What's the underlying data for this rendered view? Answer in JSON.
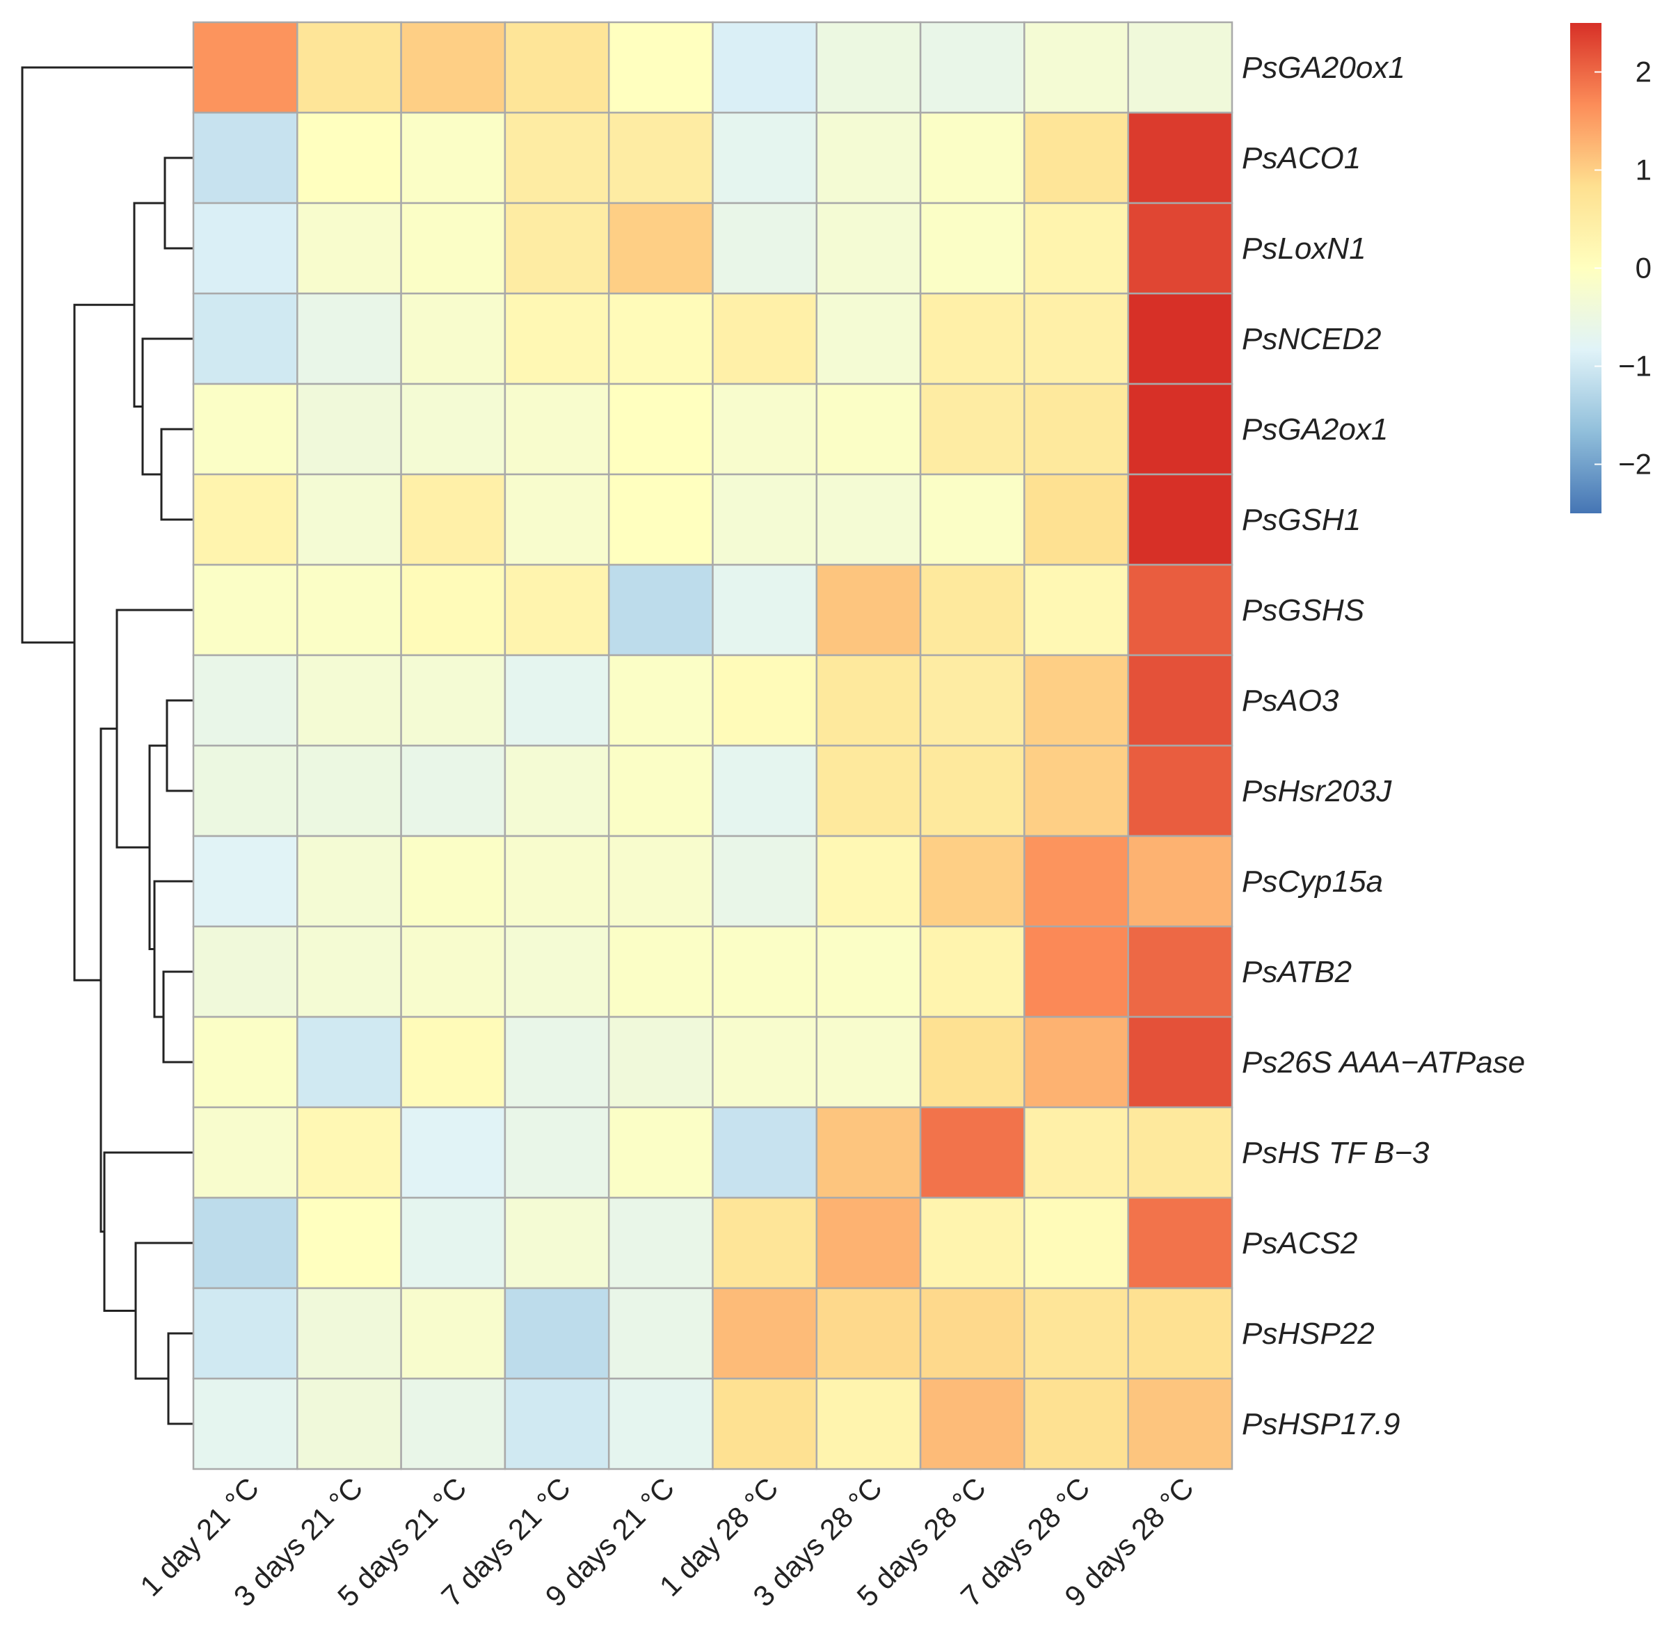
{
  "chart_data": {
    "type": "heatmap",
    "title": "",
    "columns": [
      "1 day 21 °C",
      "3 days 21 °C",
      "5 days 21 °C",
      "7 days 21 °C",
      "9 days 21 °C",
      "1 day 28 °C",
      "3 days 28 °C",
      "5 days 28 °C",
      "7 days 28 °C",
      "9 days 28 °C"
    ],
    "rows": [
      "PsGA20ox1",
      "PsACO1",
      "PsLoxN1",
      "PsNCED2",
      "PsGA2ox1",
      "PsGSH1",
      "PsGSHS",
      "PsAO3",
      "PsHsr203J",
      "PsCyp15a",
      "PsATB2",
      "Ps26S AAA−ATPase",
      "PsHS TF B−3",
      "PsACS2",
      "PsHSP22",
      "PsHSP17.9"
    ],
    "values": [
      [
        1.6,
        0.7,
        1.0,
        0.7,
        0.0,
        -0.9,
        -0.5,
        -0.6,
        -0.3,
        -0.4
      ],
      [
        -1.1,
        0.0,
        -0.1,
        0.5,
        0.5,
        -0.7,
        -0.3,
        -0.1,
        0.7,
        2.4
      ],
      [
        -0.9,
        -0.2,
        -0.1,
        0.5,
        1.0,
        -0.6,
        -0.3,
        -0.1,
        0.3,
        2.3
      ],
      [
        -1.0,
        -0.6,
        -0.2,
        0.2,
        0.1,
        0.4,
        -0.3,
        0.4,
        0.4,
        2.5
      ],
      [
        -0.1,
        -0.4,
        -0.3,
        -0.2,
        0.0,
        -0.2,
        -0.1,
        0.5,
        0.6,
        2.5
      ],
      [
        0.3,
        -0.3,
        0.4,
        -0.2,
        0.0,
        -0.3,
        -0.3,
        -0.1,
        0.8,
        2.5
      ],
      [
        -0.1,
        -0.1,
        0.1,
        0.3,
        -1.2,
        -0.7,
        1.1,
        0.6,
        0.2,
        2.1
      ],
      [
        -0.6,
        -0.3,
        -0.3,
        -0.7,
        -0.1,
        0.1,
        0.6,
        0.5,
        1.0,
        2.2
      ],
      [
        -0.5,
        -0.5,
        -0.6,
        -0.3,
        -0.1,
        -0.7,
        0.6,
        0.6,
        1.0,
        2.1
      ],
      [
        -0.8,
        -0.3,
        -0.1,
        -0.2,
        -0.2,
        -0.6,
        0.2,
        1.0,
        1.6,
        1.3
      ],
      [
        -0.4,
        -0.3,
        -0.2,
        -0.3,
        -0.1,
        -0.1,
        -0.1,
        0.3,
        1.7,
        2.0
      ],
      [
        -0.1,
        -1.0,
        0.1,
        -0.6,
        -0.4,
        -0.2,
        -0.2,
        0.8,
        1.3,
        2.2
      ],
      [
        -0.2,
        0.2,
        -0.8,
        -0.6,
        -0.1,
        -1.1,
        1.1,
        1.9,
        0.4,
        0.6
      ],
      [
        -1.2,
        0.0,
        -0.7,
        -0.3,
        -0.6,
        0.7,
        1.3,
        0.3,
        0.1,
        1.9
      ],
      [
        -1.0,
        -0.4,
        -0.2,
        -1.2,
        -0.6,
        1.2,
        0.9,
        0.9,
        0.7,
        0.8
      ],
      [
        -0.7,
        -0.4,
        -0.6,
        -1.0,
        -0.7,
        0.8,
        0.3,
        1.2,
        0.8,
        1.1
      ]
    ],
    "color_scale": {
      "min": -2.5,
      "max": 2.5,
      "ticks": [
        2,
        1,
        0,
        -1,
        -2
      ],
      "tick_labels": [
        "2",
        "1",
        "0",
        "−1",
        "−2"
      ],
      "colors": [
        "#4575b4",
        "#91bfdb",
        "#e0f3f8",
        "#ffffbf",
        "#fee090",
        "#fc8d59",
        "#d73027"
      ]
    },
    "row_dendrogram": true,
    "legend_position": "top-right",
    "xlabel": "",
    "ylabel": ""
  }
}
